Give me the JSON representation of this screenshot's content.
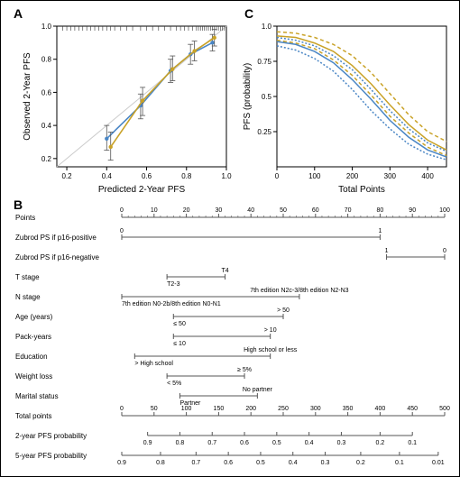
{
  "panelA": {
    "label": "A",
    "xlabel": "Predicted 2-Year PFS",
    "ylabel": "Observed 2-Year PFS",
    "xlim": [
      0.15,
      1.0
    ],
    "ylim": [
      0.15,
      1.0
    ],
    "xticks": [
      0.2,
      0.4,
      0.6,
      0.8,
      1.0
    ],
    "yticks": [
      0.2,
      0.4,
      0.6,
      0.8,
      1.0
    ],
    "tick_labels": [
      "0.2",
      "0.4",
      "0.6",
      "0.8",
      "1.0"
    ],
    "diagonal_color": "#cccccc",
    "series": [
      {
        "color": "#4a86c5",
        "points": [
          {
            "x": 0.4,
            "y": 0.32,
            "lo": 0.25,
            "hi": 0.4
          },
          {
            "x": 0.57,
            "y": 0.52,
            "lo": 0.44,
            "hi": 0.59
          },
          {
            "x": 0.72,
            "y": 0.73,
            "lo": 0.66,
            "hi": 0.8
          },
          {
            "x": 0.82,
            "y": 0.83,
            "lo": 0.77,
            "hi": 0.89
          },
          {
            "x": 0.93,
            "y": 0.9,
            "lo": 0.85,
            "hi": 0.95
          }
        ]
      },
      {
        "color": "#c9a227",
        "points": [
          {
            "x": 0.42,
            "y": 0.27,
            "lo": 0.19,
            "hi": 0.36
          },
          {
            "x": 0.58,
            "y": 0.55,
            "lo": 0.46,
            "hi": 0.63
          },
          {
            "x": 0.73,
            "y": 0.74,
            "lo": 0.67,
            "hi": 0.82
          },
          {
            "x": 0.84,
            "y": 0.85,
            "lo": 0.79,
            "hi": 0.91
          },
          {
            "x": 0.94,
            "y": 0.93,
            "lo": 0.88,
            "hi": 0.98
          }
        ]
      }
    ],
    "rug_color": "#333333",
    "rug_positions": [
      0.99,
      0.98,
      0.97,
      0.96,
      0.95,
      0.94,
      0.93,
      0.92,
      0.91,
      0.9,
      0.89,
      0.88,
      0.87,
      0.86,
      0.85,
      0.83,
      0.81,
      0.79,
      0.77,
      0.75,
      0.72,
      0.69,
      0.66,
      0.63,
      0.6,
      0.57,
      0.53,
      0.5,
      0.47,
      0.44,
      0.42,
      0.4,
      0.38,
      0.36,
      0.34,
      0.32,
      0.3,
      0.28,
      0.26,
      0.24,
      0.22,
      0.2,
      0.18
    ]
  },
  "panelC": {
    "label": "C",
    "xlabel": "Total Points",
    "ylabel": "PFS (probability)",
    "xlim": [
      0,
      450
    ],
    "ylim": [
      0,
      1.0
    ],
    "xticks": [
      0,
      100,
      200,
      300,
      400
    ],
    "xtick_labels": [
      "0",
      "100",
      "200",
      "300",
      "400"
    ],
    "yticks": [
      0.25,
      0.5,
      0.75,
      1.0
    ],
    "ytick_labels": [
      "0.25",
      "0.5",
      "0.75",
      "1.0"
    ],
    "curves": [
      {
        "color": "#c9a227",
        "dash": "4,3",
        "pts": [
          [
            0,
            0.96
          ],
          [
            50,
            0.95
          ],
          [
            100,
            0.92
          ],
          [
            150,
            0.87
          ],
          [
            200,
            0.79
          ],
          [
            250,
            0.67
          ],
          [
            300,
            0.52
          ],
          [
            350,
            0.37
          ],
          [
            400,
            0.25
          ],
          [
            450,
            0.18
          ]
        ]
      },
      {
        "color": "#c9a227",
        "dash": "none",
        "pts": [
          [
            0,
            0.93
          ],
          [
            50,
            0.92
          ],
          [
            100,
            0.88
          ],
          [
            150,
            0.82
          ],
          [
            200,
            0.72
          ],
          [
            250,
            0.59
          ],
          [
            300,
            0.44
          ],
          [
            350,
            0.3
          ],
          [
            400,
            0.19
          ],
          [
            450,
            0.12
          ]
        ]
      },
      {
        "color": "#c9a227",
        "dash": "4,3",
        "pts": [
          [
            0,
            0.9
          ],
          [
            50,
            0.88
          ],
          [
            100,
            0.84
          ],
          [
            150,
            0.76
          ],
          [
            200,
            0.65
          ],
          [
            250,
            0.51
          ],
          [
            300,
            0.36
          ],
          [
            350,
            0.24
          ],
          [
            400,
            0.14
          ],
          [
            450,
            0.08
          ]
        ]
      },
      {
        "color": "#4a86c5",
        "dash": "2,2",
        "pts": [
          [
            0,
            0.92
          ],
          [
            50,
            0.9
          ],
          [
            100,
            0.86
          ],
          [
            150,
            0.79
          ],
          [
            200,
            0.69
          ],
          [
            250,
            0.55
          ],
          [
            300,
            0.4
          ],
          [
            350,
            0.27
          ],
          [
            400,
            0.17
          ],
          [
            450,
            0.11
          ]
        ]
      },
      {
        "color": "#4a86c5",
        "dash": "none",
        "pts": [
          [
            0,
            0.89
          ],
          [
            50,
            0.87
          ],
          [
            100,
            0.82
          ],
          [
            150,
            0.74
          ],
          [
            200,
            0.62
          ],
          [
            250,
            0.48
          ],
          [
            300,
            0.33
          ],
          [
            350,
            0.21
          ],
          [
            400,
            0.12
          ],
          [
            450,
            0.07
          ]
        ]
      },
      {
        "color": "#4a86c5",
        "dash": "2,2",
        "pts": [
          [
            0,
            0.86
          ],
          [
            50,
            0.83
          ],
          [
            100,
            0.77
          ],
          [
            150,
            0.68
          ],
          [
            200,
            0.55
          ],
          [
            250,
            0.4
          ],
          [
            300,
            0.27
          ],
          [
            350,
            0.16
          ],
          [
            400,
            0.09
          ],
          [
            450,
            0.05
          ]
        ]
      }
    ]
  },
  "panelB": {
    "label": "B",
    "rows": [
      {
        "label": "Points",
        "type": "ruler",
        "ticks": [
          0,
          10,
          20,
          30,
          40,
          50,
          60,
          70,
          80,
          90,
          100
        ],
        "minor": true,
        "range": [
          0,
          100
        ],
        "text": [
          "0",
          "10",
          "20",
          "30",
          "40",
          "50",
          "60",
          "70",
          "80",
          "90",
          "100"
        ]
      },
      {
        "label": "Zubrod PS if p16-positive",
        "type": "line",
        "range_in_points": [
          0,
          80
        ],
        "cats": [
          {
            "pos": 0,
            "text": "0"
          },
          {
            "pos": 80,
            "text": "1"
          }
        ]
      },
      {
        "label": "Zubrod PS if p16-negative",
        "type": "line",
        "range_in_points": [
          82,
          100
        ],
        "cats": [
          {
            "pos": 82,
            "text": "1"
          },
          {
            "pos": 100,
            "text": "0"
          }
        ]
      },
      {
        "label": "T stage",
        "type": "line",
        "range_in_points": [
          14,
          32
        ],
        "cats": [
          {
            "pos": 14,
            "text": "T2-3",
            "below": true
          },
          {
            "pos": 32,
            "text": "T4"
          }
        ]
      },
      {
        "label": "N stage",
        "type": "line",
        "range_in_points": [
          0,
          55
        ],
        "cats": [
          {
            "pos": 0,
            "text": "7th edition N0-2b/8th edition N0-N1",
            "below": true
          },
          {
            "pos": 55,
            "text": "7th edition N2c-3/8th edition N2-N3"
          }
        ]
      },
      {
        "label": "Age (years)",
        "type": "line",
        "range_in_points": [
          16,
          50
        ],
        "cats": [
          {
            "pos": 16,
            "text": "≤ 50",
            "below": true
          },
          {
            "pos": 50,
            "text": "> 50"
          }
        ]
      },
      {
        "label": "Pack-years",
        "type": "line",
        "range_in_points": [
          16,
          46
        ],
        "cats": [
          {
            "pos": 16,
            "text": "≤ 10",
            "below": true
          },
          {
            "pos": 46,
            "text": "> 10"
          }
        ]
      },
      {
        "label": "Education",
        "type": "line",
        "range_in_points": [
          4,
          46
        ],
        "cats": [
          {
            "pos": 4,
            "text": "> High school",
            "below": true
          },
          {
            "pos": 46,
            "text": "High school or less"
          }
        ]
      },
      {
        "label": "Weight loss",
        "type": "line",
        "range_in_points": [
          14,
          38
        ],
        "cats": [
          {
            "pos": 14,
            "text": "< 5%",
            "below": true
          },
          {
            "pos": 38,
            "text": "≥ 5%"
          }
        ]
      },
      {
        "label": "Marital status",
        "type": "line",
        "range_in_points": [
          18,
          42
        ],
        "cats": [
          {
            "pos": 18,
            "text": "Partner",
            "below": true
          },
          {
            "pos": 42,
            "text": "No partner"
          }
        ]
      },
      {
        "label": "Total points",
        "type": "ruler",
        "ticks": [
          0,
          50,
          100,
          150,
          200,
          250,
          300,
          350,
          400,
          450,
          500
        ],
        "range": [
          0,
          500
        ],
        "text": [
          "0",
          "50",
          "100",
          "150",
          "200",
          "250",
          "300",
          "350",
          "400",
          "450",
          "500"
        ]
      },
      {
        "label": "2-year PFS probability",
        "type": "ruler",
        "ticks_at_points": [
          40,
          90,
          140,
          190,
          240,
          290,
          340,
          400,
          450
        ],
        "text": [
          "0.9",
          "0.8",
          "0.7",
          "0.6",
          "0.5",
          "0.4",
          "0.3",
          "0.2",
          "0.1"
        ],
        "range": [
          0,
          500
        ],
        "short": true
      },
      {
        "label": "5-year PFS probability",
        "type": "ruler",
        "ticks_at_points": [
          0,
          60,
          115,
          165,
          215,
          265,
          315,
          370,
          430,
          490
        ],
        "text": [
          "0.9",
          "0.8",
          "0.7",
          "0.6",
          "0.5",
          "0.4",
          "0.3",
          "0.2",
          "0.1",
          "0.01"
        ],
        "range": [
          0,
          500
        ],
        "short": true
      }
    ],
    "line_color": "#555555"
  }
}
